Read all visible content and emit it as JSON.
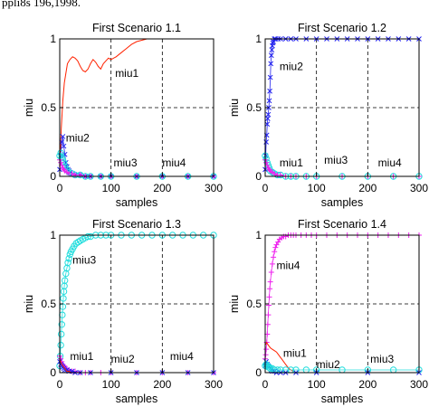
{
  "top_text": "ppli8s 196,1998.",
  "chart_data": [
    {
      "type": "line",
      "title": "First Scenario 1.1",
      "xlabel": "samples",
      "ylabel": "miu",
      "xlim": [
        0,
        300
      ],
      "ylim": [
        0,
        1
      ],
      "xticks": [
        "0",
        "100",
        "200",
        "300"
      ],
      "yticks": [
        "0",
        "0.5",
        "1"
      ],
      "grid": true,
      "annotations": [
        {
          "text": "miu1",
          "x": 108,
          "y": 0.75
        },
        {
          "text": "miu2",
          "x": 12,
          "y": 0.28
        },
        {
          "text": "miu3",
          "x": 105,
          "y": 0.1
        },
        {
          "text": "miu4",
          "x": 200,
          "y": 0.1
        }
      ],
      "series": [
        {
          "color": "#ff2200",
          "marker": "none",
          "x": [
            0,
            3,
            6,
            9,
            12,
            15,
            20,
            25,
            30,
            35,
            40,
            45,
            50,
            55,
            60,
            65,
            70,
            75,
            80,
            85,
            90,
            95,
            100,
            110,
            120,
            130,
            140,
            150,
            160,
            170,
            175,
            180,
            200,
            220,
            240,
            260,
            280,
            300
          ],
          "y": [
            0.05,
            0.35,
            0.55,
            0.68,
            0.75,
            0.82,
            0.85,
            0.87,
            0.86,
            0.84,
            0.8,
            0.77,
            0.76,
            0.78,
            0.82,
            0.85,
            0.83,
            0.8,
            0.78,
            0.82,
            0.84,
            0.86,
            0.85,
            0.87,
            0.9,
            0.93,
            0.96,
            0.98,
            0.99,
            1.0,
            1.0,
            1.0,
            1.0,
            1.0,
            1.0,
            1.0,
            1.0,
            1.0
          ]
        },
        {
          "color": "#2222ee",
          "marker": "x",
          "x": [
            0,
            2,
            4,
            6,
            8,
            10,
            12,
            14,
            16,
            18,
            20,
            25,
            30,
            40,
            50,
            60,
            80,
            100,
            150,
            200,
            250,
            300
          ],
          "y": [
            0.05,
            0.15,
            0.25,
            0.29,
            0.22,
            0.16,
            0.1,
            0.07,
            0.05,
            0.04,
            0.03,
            0.02,
            0.01,
            0.01,
            0.0,
            0.0,
            0.0,
            0.0,
            0.0,
            0.0,
            0.0,
            0.0
          ]
        },
        {
          "color": "#22dddd",
          "marker": "o",
          "x": [
            0,
            2,
            4,
            6,
            8,
            10,
            14,
            18,
            24,
            30,
            40,
            50,
            60,
            80,
            100,
            150,
            200,
            250,
            300
          ],
          "y": [
            0.15,
            0.17,
            0.14,
            0.12,
            0.1,
            0.07,
            0.05,
            0.03,
            0.02,
            0.01,
            0.01,
            0.0,
            0.0,
            0.0,
            0.0,
            0.0,
            0.0,
            0.0,
            0.0
          ]
        },
        {
          "color": "#ee22ee",
          "marker": "+",
          "x": [
            0,
            2,
            4,
            6,
            8,
            10,
            14,
            18,
            24,
            30,
            40,
            50,
            60,
            80,
            100,
            150,
            200,
            250,
            300
          ],
          "y": [
            0.12,
            0.1,
            0.08,
            0.06,
            0.05,
            0.04,
            0.03,
            0.02,
            0.02,
            0.01,
            0.01,
            0.0,
            0.0,
            0.0,
            0.0,
            0.0,
            0.0,
            0.0,
            0.0
          ]
        }
      ]
    },
    {
      "type": "line",
      "title": "First Scenario 1.2",
      "xlabel": "samples",
      "ylabel": "miu",
      "xlim": [
        0,
        300
      ],
      "ylim": [
        0,
        1
      ],
      "xticks": [
        "0",
        "100",
        "200",
        "300"
      ],
      "yticks": [
        "0",
        "0.5",
        "1"
      ],
      "grid": true,
      "annotations": [
        {
          "text": "miu2",
          "x": 28,
          "y": 0.8
        },
        {
          "text": "miu1",
          "x": 28,
          "y": 0.1
        },
        {
          "text": "miu3",
          "x": 115,
          "y": 0.12
        },
        {
          "text": "miu4",
          "x": 220,
          "y": 0.1
        }
      ],
      "series": [
        {
          "color": "#2222ee",
          "marker": "x",
          "x": [
            0,
            1,
            2,
            3,
            4,
            5,
            6,
            7,
            8,
            9,
            10,
            11,
            12,
            13,
            14,
            15,
            16,
            18,
            20,
            25,
            30,
            40,
            50,
            60,
            80,
            100,
            120,
            140,
            160,
            180,
            200,
            220,
            240,
            260,
            280,
            300
          ],
          "y": [
            0.05,
            0.15,
            0.25,
            0.3,
            0.38,
            0.42,
            0.45,
            0.5,
            0.55,
            0.62,
            0.72,
            0.82,
            0.88,
            0.92,
            0.95,
            0.97,
            0.98,
            1.0,
            1.0,
            1.0,
            1.0,
            1.0,
            1.0,
            1.0,
            1.0,
            1.0,
            1.0,
            1.0,
            1.0,
            1.0,
            1.0,
            1.0,
            1.0,
            1.0,
            1.0,
            1.0
          ]
        },
        {
          "color": "#ff2200",
          "marker": "none",
          "x": [
            0,
            2,
            4,
            6,
            8,
            10,
            12,
            14,
            18,
            22,
            30,
            40,
            60,
            100,
            200,
            300
          ],
          "y": [
            0.15,
            0.12,
            0.08,
            0.06,
            0.04,
            0.03,
            0.02,
            0.01,
            0.01,
            0.0,
            0.0,
            0.0,
            0.0,
            0.0,
            0.0,
            0.0
          ]
        },
        {
          "color": "#22dddd",
          "marker": "o",
          "x": [
            0,
            2,
            4,
            6,
            8,
            10,
            14,
            18,
            24,
            30,
            40,
            50,
            60,
            80,
            100,
            150,
            200,
            250,
            300
          ],
          "y": [
            0.15,
            0.13,
            0.1,
            0.08,
            0.06,
            0.04,
            0.03,
            0.02,
            0.01,
            0.01,
            0.0,
            0.0,
            0.0,
            0.0,
            0.0,
            0.0,
            0.0,
            0.0,
            0.0
          ]
        },
        {
          "color": "#ee22ee",
          "marker": "+",
          "x": [
            0,
            2,
            4,
            6,
            8,
            10,
            14,
            18,
            24,
            30,
            40,
            50,
            60,
            80,
            100,
            150,
            200,
            250,
            300
          ],
          "y": [
            0.12,
            0.1,
            0.08,
            0.06,
            0.05,
            0.04,
            0.03,
            0.02,
            0.01,
            0.01,
            0.0,
            0.0,
            0.0,
            0.0,
            0.0,
            0.0,
            0.0,
            0.0,
            0.0
          ]
        }
      ]
    },
    {
      "type": "line",
      "title": "First Scenario 1.3",
      "xlabel": "samples",
      "ylabel": "miu",
      "xlim": [
        0,
        300
      ],
      "ylim": [
        0,
        1
      ],
      "xticks": [
        "0",
        "100",
        "200",
        "300"
      ],
      "yticks": [
        "0",
        "0.5",
        "1"
      ],
      "grid": true,
      "annotations": [
        {
          "text": "miu3",
          "x": 25,
          "y": 0.82
        },
        {
          "text": "miu1",
          "x": 20,
          "y": 0.12
        },
        {
          "text": "miu2",
          "x": 100,
          "y": 0.1
        },
        {
          "text": "miu4",
          "x": 215,
          "y": 0.12
        }
      ],
      "series": [
        {
          "color": "#22dddd",
          "marker": "o",
          "x": [
            0,
            1,
            2,
            3,
            4,
            5,
            6,
            7,
            8,
            9,
            10,
            12,
            14,
            16,
            18,
            20,
            22,
            25,
            28,
            32,
            36,
            40,
            45,
            50,
            55,
            60,
            70,
            80,
            90,
            100,
            120,
            140,
            160,
            180,
            200,
            220,
            240,
            260,
            280,
            300
          ],
          "y": [
            0.05,
            0.12,
            0.2,
            0.28,
            0.35,
            0.42,
            0.48,
            0.54,
            0.59,
            0.63,
            0.67,
            0.72,
            0.76,
            0.8,
            0.83,
            0.86,
            0.88,
            0.9,
            0.92,
            0.94,
            0.95,
            0.96,
            0.97,
            0.98,
            0.99,
            0.99,
            1.0,
            1.0,
            1.0,
            1.0,
            1.0,
            1.0,
            1.0,
            1.0,
            1.0,
            1.0,
            1.0,
            1.0,
            1.0,
            1.0
          ]
        },
        {
          "color": "#ee22ee",
          "marker": "+",
          "x": [
            0,
            2,
            4,
            6,
            8,
            10,
            14,
            18,
            24,
            30,
            40,
            50,
            60,
            80,
            100,
            150,
            200,
            250,
            300
          ],
          "y": [
            0.12,
            0.1,
            0.08,
            0.06,
            0.05,
            0.04,
            0.03,
            0.02,
            0.01,
            0.01,
            0.0,
            0.0,
            0.0,
            0.0,
            0.0,
            0.0,
            0.0,
            0.0,
            0.0
          ]
        },
        {
          "color": "#2222ee",
          "marker": "x",
          "x": [
            0,
            2,
            4,
            6,
            8,
            10,
            14,
            18,
            24,
            30,
            40,
            60,
            100,
            150,
            200,
            250,
            300
          ],
          "y": [
            0.08,
            0.06,
            0.05,
            0.04,
            0.03,
            0.02,
            0.02,
            0.01,
            0.01,
            0.0,
            0.0,
            0.0,
            0.0,
            0.0,
            0.0,
            0.0,
            0.0
          ]
        },
        {
          "color": "#ff2200",
          "marker": "none",
          "x": [
            0,
            2,
            4,
            6,
            8,
            10,
            12,
            14,
            18,
            22,
            30,
            40,
            60,
            100,
            200,
            300
          ],
          "y": [
            0.1,
            0.08,
            0.06,
            0.05,
            0.04,
            0.03,
            0.02,
            0.01,
            0.01,
            0.0,
            0.0,
            0.0,
            0.0,
            0.0,
            0.0,
            0.0
          ]
        }
      ]
    },
    {
      "type": "line",
      "title": "First Scenario 1.4",
      "xlabel": "samples",
      "ylabel": "miu",
      "xlim": [
        0,
        300
      ],
      "ylim": [
        0,
        1
      ],
      "xticks": [
        "0",
        "100",
        "200",
        "300"
      ],
      "yticks": [
        "0",
        "0.5",
        "1"
      ],
      "grid": true,
      "annotations": [
        {
          "text": "miu4",
          "x": 22,
          "y": 0.78
        },
        {
          "text": "miu1",
          "x": 35,
          "y": 0.14
        },
        {
          "text": "miu2",
          "x": 100,
          "y": 0.06
        },
        {
          "text": "miu3",
          "x": 205,
          "y": 0.1
        }
      ],
      "series": [
        {
          "color": "#ee22ee",
          "marker": "+",
          "x": [
            0,
            1,
            2,
            3,
            4,
            5,
            6,
            7,
            8,
            9,
            10,
            12,
            14,
            16,
            18,
            20,
            22,
            25,
            28,
            32,
            36,
            40,
            45,
            50,
            55,
            60,
            70,
            80,
            90,
            100,
            120,
            140,
            160,
            180,
            200,
            220,
            240,
            260,
            280,
            300
          ],
          "y": [
            0.1,
            0.13,
            0.17,
            0.22,
            0.28,
            0.35,
            0.42,
            0.49,
            0.55,
            0.61,
            0.66,
            0.73,
            0.79,
            0.84,
            0.88,
            0.91,
            0.93,
            0.95,
            0.97,
            0.98,
            0.99,
            0.99,
            1.0,
            1.0,
            1.0,
            1.0,
            1.0,
            1.0,
            1.0,
            1.0,
            1.0,
            1.0,
            1.0,
            1.0,
            1.0,
            1.0,
            1.0,
            1.0,
            1.0,
            1.0
          ]
        },
        {
          "color": "#ff2200",
          "marker": "none",
          "x": [
            0,
            3,
            6,
            10,
            14,
            18,
            22,
            26,
            30,
            34,
            38,
            42,
            46,
            50,
            55,
            60,
            80,
            100,
            200,
            300
          ],
          "y": [
            0.2,
            0.22,
            0.2,
            0.18,
            0.17,
            0.16,
            0.15,
            0.13,
            0.11,
            0.09,
            0.07,
            0.05,
            0.03,
            0.02,
            0.01,
            0.0,
            0.0,
            0.0,
            0.0,
            0.0
          ]
        },
        {
          "color": "#2222ee",
          "marker": "x",
          "x": [
            0,
            2,
            4,
            6,
            8,
            10,
            12,
            14,
            18,
            22,
            30,
            40,
            60,
            100,
            200,
            300
          ],
          "y": [
            0.05,
            0.08,
            0.06,
            0.05,
            0.04,
            0.03,
            0.02,
            0.01,
            0.01,
            0.0,
            0.0,
            0.0,
            0.0,
            0.0,
            0.0,
            0.0
          ]
        },
        {
          "color": "#22dddd",
          "marker": "o",
          "x": [
            0,
            2,
            4,
            6,
            8,
            10,
            14,
            18,
            24,
            30,
            40,
            50,
            60,
            80,
            100,
            150,
            200,
            250,
            300
          ],
          "y": [
            0.05,
            0.06,
            0.05,
            0.04,
            0.04,
            0.03,
            0.03,
            0.02,
            0.02,
            0.02,
            0.02,
            0.02,
            0.02,
            0.02,
            0.02,
            0.02,
            0.02,
            0.02,
            0.02
          ]
        }
      ]
    }
  ]
}
